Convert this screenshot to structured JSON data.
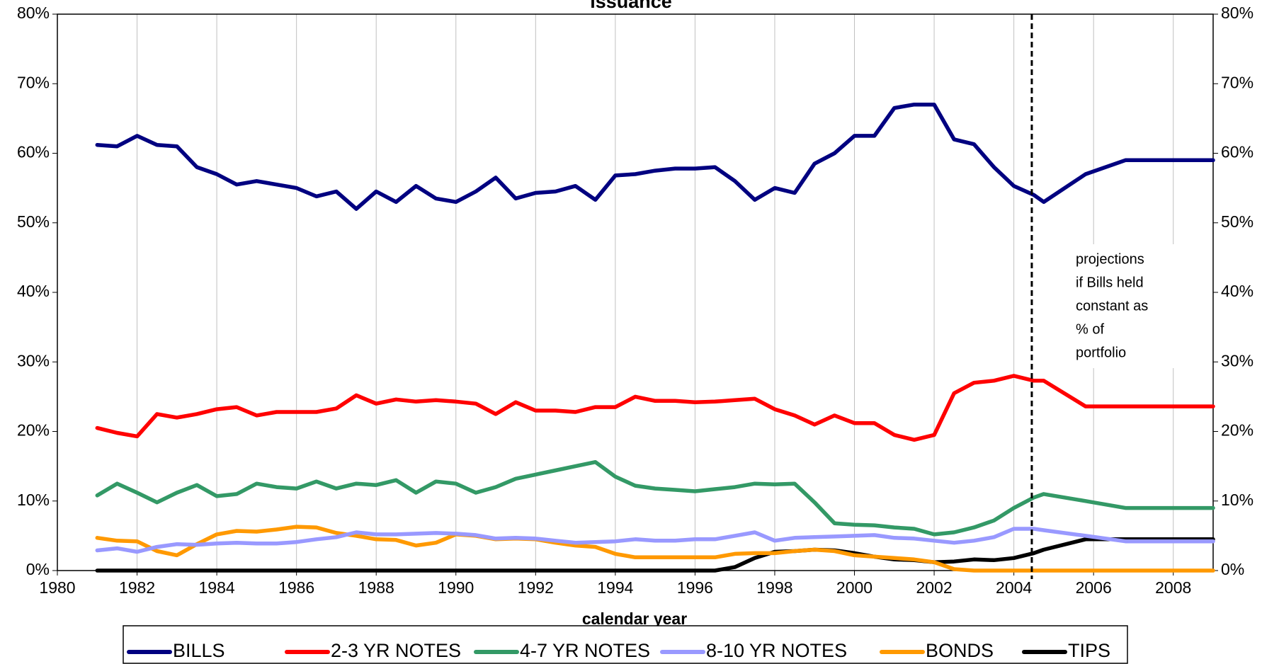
{
  "chart_data": {
    "type": "line",
    "title": "issuance",
    "x_label": "calendar year",
    "x": [
      1981,
      1981.5,
      1982,
      1982.5,
      1983,
      1983.5,
      1984,
      1984.5,
      1985,
      1985.5,
      1986,
      1986.5,
      1987,
      1987.5,
      1988,
      1988.5,
      1989,
      1989.5,
      1990,
      1990.5,
      1991,
      1991.5,
      1992,
      1992.5,
      1993,
      1993.5,
      1994,
      1994.5,
      1995,
      1995.5,
      1996,
      1996.5,
      1997,
      1997.5,
      1998,
      1998.5,
      1999,
      1999.5,
      2000,
      2000.5,
      2001,
      2001.5,
      2002,
      2002.5,
      2003,
      2003.5,
      2004,
      2004.5,
      2004.75,
      2005.8,
      2006.8,
      2009
    ],
    "series": [
      {
        "name": "BILLS",
        "color": "#000080",
        "values": [
          61.2,
          61,
          62.5,
          61.2,
          61,
          58,
          57,
          55.5,
          56,
          55.5,
          55,
          53.8,
          54.5,
          52,
          54.5,
          53,
          55.3,
          53.5,
          53,
          54.5,
          56.5,
          53.5,
          54.3,
          54.5,
          55.3,
          53.3,
          56.8,
          57,
          57.5,
          57.8,
          57.8,
          58,
          56,
          53.3,
          55,
          54.3,
          58.5,
          60,
          62.5,
          62.5,
          66.5,
          67,
          67,
          62,
          61.3,
          58,
          55.3,
          54,
          53,
          57,
          59,
          59
        ]
      },
      {
        "name": "2-3 YR NOTES",
        "color": "#ff0000",
        "values": [
          20.5,
          19.8,
          19.3,
          22.5,
          22,
          22.5,
          23.2,
          23.5,
          22.3,
          22.8,
          22.8,
          22.8,
          23.3,
          25.2,
          24,
          24.6,
          24.3,
          24.5,
          24.3,
          24,
          22.5,
          24.2,
          23,
          23,
          22.8,
          23.5,
          23.5,
          25,
          24.4,
          24.4,
          24.2,
          24.3,
          24.5,
          24.7,
          23.2,
          22.3,
          21,
          22.3,
          21.2,
          21.2,
          19.5,
          18.8,
          19.5,
          25.5,
          27,
          27.3,
          28,
          27.3,
          27.3,
          23.6,
          23.6,
          23.6
        ]
      },
      {
        "name": "4-7 YR NOTES",
        "color": "#339966",
        "values": [
          10.8,
          12.5,
          11.2,
          9.8,
          11.2,
          12.3,
          10.7,
          11,
          12.5,
          12,
          11.8,
          12.8,
          11.8,
          12.5,
          12.3,
          13,
          11.2,
          12.8,
          12.5,
          11.2,
          12,
          13.2,
          13.8,
          14.4,
          15,
          15.6,
          13.5,
          12.2,
          11.8,
          11.6,
          11.4,
          11.7,
          12,
          12.5,
          12.4,
          12.5,
          9.8,
          6.8,
          6.6,
          6.5,
          6.2,
          6,
          5.2,
          5.5,
          6.2,
          7.2,
          9,
          10.5,
          11,
          10,
          9,
          9
        ]
      },
      {
        "name": "8-10 YR NOTES",
        "color": "#9999ff",
        "values": [
          2.9,
          3.2,
          2.7,
          3.4,
          3.8,
          3.7,
          3.9,
          4,
          3.9,
          3.9,
          4.1,
          4.5,
          4.8,
          5.5,
          5.2,
          5.2,
          5.3,
          5.4,
          5.3,
          5.1,
          4.6,
          4.7,
          4.6,
          4.3,
          4,
          4.1,
          4.2,
          4.5,
          4.3,
          4.3,
          4.5,
          4.5,
          5,
          5.5,
          4.3,
          4.7,
          4.8,
          4.9,
          5,
          5.1,
          4.7,
          4.6,
          4.3,
          4,
          4.3,
          4.8,
          6,
          6,
          5.8,
          5,
          4.2,
          4.2
        ]
      },
      {
        "name": "BONDS",
        "color": "#ff9900",
        "values": [
          4.7,
          4.3,
          4.2,
          2.8,
          2.2,
          3.8,
          5.2,
          5.7,
          5.6,
          5.9,
          6.3,
          6.2,
          5.4,
          5,
          4.5,
          4.4,
          3.6,
          4,
          5.2,
          5,
          4.5,
          4.6,
          4.5,
          4,
          3.6,
          3.4,
          2.4,
          1.9,
          1.9,
          1.9,
          1.9,
          1.9,
          2.4,
          2.5,
          2.5,
          2.8,
          3,
          2.8,
          2.2,
          2,
          1.8,
          1.6,
          1.2,
          0.2,
          0,
          0,
          0,
          0,
          0,
          0,
          0,
          0
        ]
      },
      {
        "name": "TIPS",
        "color": "#000000",
        "values": [
          0,
          0,
          0,
          0,
          0,
          0,
          0,
          0,
          0,
          0,
          0,
          0,
          0,
          0,
          0,
          0,
          0,
          0,
          0,
          0,
          0,
          0,
          0,
          0,
          0,
          0,
          0,
          0,
          0,
          0,
          0,
          0,
          0.5,
          1.8,
          2.7,
          2.8,
          3,
          2.9,
          2.5,
          2,
          1.6,
          1.5,
          1.2,
          1.3,
          1.6,
          1.5,
          1.8,
          2.5,
          3,
          4.5,
          4.5,
          4.5
        ]
      }
    ],
    "xlim": [
      1980,
      2009
    ],
    "xticks": [
      1980,
      1982,
      1984,
      1986,
      1988,
      1990,
      1992,
      1994,
      1996,
      1998,
      2000,
      2002,
      2004,
      2006,
      2008
    ],
    "ylim": [
      0,
      80
    ],
    "yticks": [
      {
        "value": 0,
        "label": "0%"
      },
      {
        "value": 10,
        "label": "10%"
      },
      {
        "value": 20,
        "label": "20%"
      },
      {
        "value": 30,
        "label": "30%"
      },
      {
        "value": 40,
        "label": "40%"
      },
      {
        "value": 50,
        "label": "50%"
      },
      {
        "value": 60,
        "label": "60%"
      },
      {
        "value": 70,
        "label": "70%"
      },
      {
        "value": 80,
        "label": "80%"
      }
    ],
    "grid": true,
    "projection_start": 2004.45,
    "annotation": [
      "projections",
      "if Bills held",
      "constant as",
      "% of",
      "portfolio"
    ],
    "legend": "bottom"
  }
}
